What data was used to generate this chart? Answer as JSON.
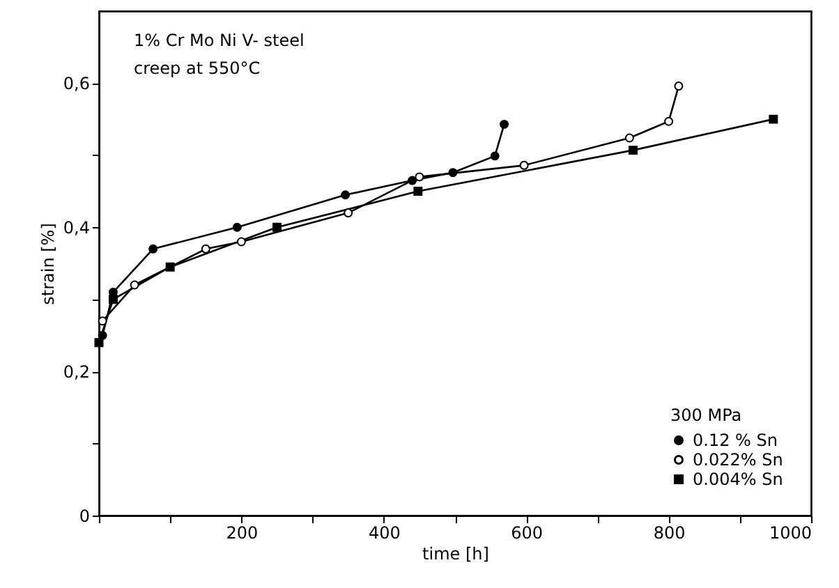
{
  "chart_data": {
    "type": "line",
    "xlabel": "time [h]",
    "ylabel": "strain [%]",
    "legend_title": "300 MPa",
    "annotations": [
      "1% Cr Mo Ni V- steel",
      "creep at 550°C"
    ],
    "series": [
      {
        "name": "0.12  % Sn",
        "color": "#000000",
        "marker": "circle",
        "x": [
          5,
          20,
          76,
          194,
          346,
          440,
          497,
          556,
          569
        ],
        "values": [
          0.25,
          0.31,
          0.37,
          0.4,
          0.445,
          0.465,
          0.476,
          0.499,
          0.543
        ]
      },
      {
        "name": "0.022% Sn",
        "color": "#000000",
        "marker": "circle open",
        "x": [
          5,
          50,
          150,
          200,
          350,
          450,
          597,
          745,
          800,
          814
        ],
        "values": [
          0.27,
          0.32,
          0.37,
          0.38,
          0.42,
          0.47,
          0.486,
          0.524,
          0.547,
          0.596
        ]
      },
      {
        "name": "0.004% Sn",
        "color": "#000000",
        "marker": "square",
        "x": [
          0,
          20,
          100,
          250,
          448,
          750,
          947
        ],
        "values": [
          0.24,
          0.3,
          0.345,
          0.4,
          0.45,
          0.507,
          0.55
        ]
      }
    ],
    "xlim": [
      0,
      1000
    ],
    "ylim": [
      0,
      0.7
    ],
    "xticks": [
      {
        "value": 0,
        "label": null
      },
      {
        "value": 100,
        "label": null
      },
      200,
      {
        "value": 300,
        "label": null
      },
      400,
      {
        "value": 500,
        "label": null
      },
      600,
      {
        "value": 700,
        "label": null
      },
      800,
      {
        "value": 900,
        "label": null
      },
      1000
    ],
    "yticks": [
      {
        "value": 0,
        "label": "0"
      },
      {
        "value": 0.1,
        "label": null
      },
      {
        "value": 0.2,
        "label": "0,2"
      },
      {
        "value": 0.3,
        "label": null
      },
      {
        "value": 0.4,
        "label": "0,4"
      },
      {
        "value": 0.5,
        "label": null
      },
      {
        "value": 0.6,
        "label": "0,6"
      }
    ],
    "grid": false,
    "legend": "bottom right",
    "line_style": "solid"
  }
}
